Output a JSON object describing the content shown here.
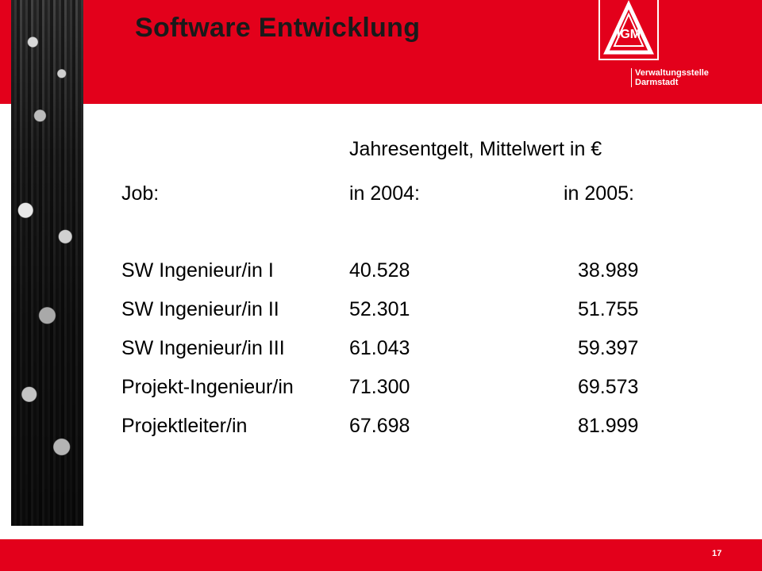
{
  "slide": {
    "title": "Software Entwicklung",
    "office_line1": "Verwaltungsstelle",
    "office_line2": "Darmstadt",
    "logo_text": "IGM",
    "page_number": "17"
  },
  "table": {
    "heading": "Jahresentgelt, Mittelwert in €",
    "col_job": "Job:",
    "col_2004": "in 2004:",
    "col_2005": "in 2005:",
    "rows": [
      {
        "job": "SW Ingenieur/in I",
        "v2004": "40.528",
        "v2005": "38.989"
      },
      {
        "job": "SW Ingenieur/in II",
        "v2004": "52.301",
        "v2005": "51.755"
      },
      {
        "job": "SW Ingenieur/in III",
        "v2004": "61.043",
        "v2005": "59.397"
      },
      {
        "job": "Projekt-Ingenieur/in",
        "v2004": "71.300",
        "v2005": "69.573"
      },
      {
        "job": "Projektleiter/in",
        "v2004": "67.698",
        "v2005": "81.999"
      }
    ]
  },
  "colors": {
    "brand_red": "#e3001b",
    "text": "#000000",
    "white": "#ffffff"
  }
}
